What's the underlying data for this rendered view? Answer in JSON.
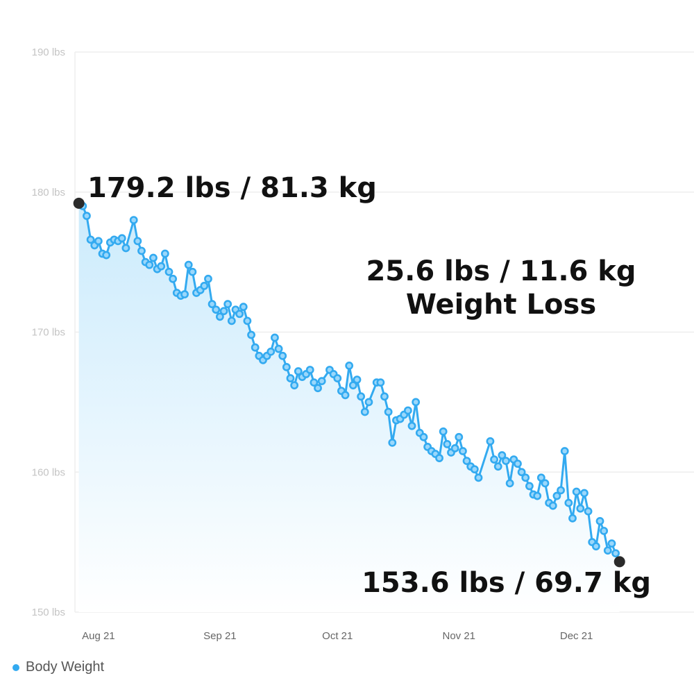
{
  "chart_data": {
    "type": "line",
    "colors": {
      "line": "#33aaf0",
      "marker_fill": "#9ad7fb",
      "endpoint": "#2b2b2b",
      "grid": "#eeeeee"
    },
    "y_axis": {
      "ylim": [
        150,
        190
      ],
      "ticks": [
        {
          "value": 150,
          "label": "150 lbs"
        },
        {
          "value": 160,
          "label": "160 lbs"
        },
        {
          "value": 170,
          "label": "170 lbs"
        },
        {
          "value": 180,
          "label": "180 lbs"
        },
        {
          "value": 190,
          "label": "190 lbs"
        }
      ]
    },
    "x_axis": {
      "xlim": [
        "2021-07-26",
        "2021-12-31"
      ],
      "ticks": [
        {
          "date": "2021-08-01",
          "label": "Aug 21"
        },
        {
          "date": "2021-09-01",
          "label": "Sep 21"
        },
        {
          "date": "2021-10-01",
          "label": "Oct 21"
        },
        {
          "date": "2021-11-01",
          "label": "Nov 21"
        },
        {
          "date": "2021-12-01",
          "label": "Dec 21"
        }
      ]
    },
    "series": [
      {
        "name": "Body Weight",
        "points": [
          [
            "2021-07-27",
            179.2
          ],
          [
            "2021-07-28",
            179.0
          ],
          [
            "2021-07-29",
            178.3
          ],
          [
            "2021-07-30",
            176.6
          ],
          [
            "2021-07-31",
            176.2
          ],
          [
            "2021-08-01",
            176.5
          ],
          [
            "2021-08-02",
            175.6
          ],
          [
            "2021-08-03",
            175.5
          ],
          [
            "2021-08-04",
            176.4
          ],
          [
            "2021-08-05",
            176.6
          ],
          [
            "2021-08-06",
            176.5
          ],
          [
            "2021-08-07",
            176.7
          ],
          [
            "2021-08-08",
            176.0
          ],
          [
            "2021-08-10",
            178.0
          ],
          [
            "2021-08-11",
            176.5
          ],
          [
            "2021-08-12",
            175.8
          ],
          [
            "2021-08-13",
            175.0
          ],
          [
            "2021-08-14",
            174.8
          ],
          [
            "2021-08-15",
            175.3
          ],
          [
            "2021-08-16",
            174.5
          ],
          [
            "2021-08-17",
            174.7
          ],
          [
            "2021-08-18",
            175.6
          ],
          [
            "2021-08-19",
            174.3
          ],
          [
            "2021-08-20",
            173.8
          ],
          [
            "2021-08-21",
            172.8
          ],
          [
            "2021-08-22",
            172.6
          ],
          [
            "2021-08-23",
            172.7
          ],
          [
            "2021-08-24",
            174.8
          ],
          [
            "2021-08-25",
            174.3
          ],
          [
            "2021-08-26",
            172.8
          ],
          [
            "2021-08-27",
            173.0
          ],
          [
            "2021-08-28",
            173.3
          ],
          [
            "2021-08-29",
            173.8
          ],
          [
            "2021-08-30",
            172.0
          ],
          [
            "2021-08-31",
            171.6
          ],
          [
            "2021-09-01",
            171.1
          ],
          [
            "2021-09-02",
            171.5
          ],
          [
            "2021-09-03",
            172.0
          ],
          [
            "2021-09-04",
            170.8
          ],
          [
            "2021-09-05",
            171.6
          ],
          [
            "2021-09-06",
            171.3
          ],
          [
            "2021-09-07",
            171.8
          ],
          [
            "2021-09-08",
            170.8
          ],
          [
            "2021-09-09",
            169.8
          ],
          [
            "2021-09-10",
            168.9
          ],
          [
            "2021-09-11",
            168.3
          ],
          [
            "2021-09-12",
            168.0
          ],
          [
            "2021-09-13",
            168.3
          ],
          [
            "2021-09-14",
            168.6
          ],
          [
            "2021-09-15",
            169.6
          ],
          [
            "2021-09-16",
            168.8
          ],
          [
            "2021-09-17",
            168.3
          ],
          [
            "2021-09-18",
            167.5
          ],
          [
            "2021-09-19",
            166.7
          ],
          [
            "2021-09-20",
            166.2
          ],
          [
            "2021-09-21",
            167.2
          ],
          [
            "2021-09-22",
            166.8
          ],
          [
            "2021-09-23",
            167.0
          ],
          [
            "2021-09-24",
            167.3
          ],
          [
            "2021-09-25",
            166.4
          ],
          [
            "2021-09-26",
            166.0
          ],
          [
            "2021-09-27",
            166.5
          ],
          [
            "2021-09-29",
            167.3
          ],
          [
            "2021-09-30",
            167.0
          ],
          [
            "2021-10-01",
            166.7
          ],
          [
            "2021-10-02",
            165.8
          ],
          [
            "2021-10-03",
            165.5
          ],
          [
            "2021-10-04",
            167.6
          ],
          [
            "2021-10-05",
            166.2
          ],
          [
            "2021-10-06",
            166.6
          ],
          [
            "2021-10-07",
            165.4
          ],
          [
            "2021-10-08",
            164.3
          ],
          [
            "2021-10-09",
            165.0
          ],
          [
            "2021-10-11",
            166.4
          ],
          [
            "2021-10-12",
            166.4
          ],
          [
            "2021-10-13",
            165.4
          ],
          [
            "2021-10-14",
            164.3
          ],
          [
            "2021-10-15",
            162.1
          ],
          [
            "2021-10-16",
            163.7
          ],
          [
            "2021-10-17",
            163.8
          ],
          [
            "2021-10-18",
            164.1
          ],
          [
            "2021-10-19",
            164.4
          ],
          [
            "2021-10-20",
            163.3
          ],
          [
            "2021-10-21",
            165.0
          ],
          [
            "2021-10-22",
            162.8
          ],
          [
            "2021-10-23",
            162.5
          ],
          [
            "2021-10-24",
            161.8
          ],
          [
            "2021-10-25",
            161.5
          ],
          [
            "2021-10-26",
            161.3
          ],
          [
            "2021-10-27",
            161.0
          ],
          [
            "2021-10-28",
            162.9
          ],
          [
            "2021-10-29",
            162.0
          ],
          [
            "2021-10-30",
            161.4
          ],
          [
            "2021-10-31",
            161.7
          ],
          [
            "2021-11-01",
            162.5
          ],
          [
            "2021-11-02",
            161.5
          ],
          [
            "2021-11-03",
            160.8
          ],
          [
            "2021-11-04",
            160.4
          ],
          [
            "2021-11-05",
            160.2
          ],
          [
            "2021-11-06",
            159.6
          ],
          [
            "2021-11-09",
            162.2
          ],
          [
            "2021-11-10",
            160.9
          ],
          [
            "2021-11-11",
            160.4
          ],
          [
            "2021-11-12",
            161.2
          ],
          [
            "2021-11-13",
            160.8
          ],
          [
            "2021-11-14",
            159.2
          ],
          [
            "2021-11-15",
            160.9
          ],
          [
            "2021-11-16",
            160.6
          ],
          [
            "2021-11-17",
            160.0
          ],
          [
            "2021-11-18",
            159.6
          ],
          [
            "2021-11-19",
            159.0
          ],
          [
            "2021-11-20",
            158.4
          ],
          [
            "2021-11-21",
            158.3
          ],
          [
            "2021-11-22",
            159.6
          ],
          [
            "2021-11-23",
            159.2
          ],
          [
            "2021-11-24",
            157.8
          ],
          [
            "2021-11-25",
            157.6
          ],
          [
            "2021-11-26",
            158.3
          ],
          [
            "2021-11-27",
            158.7
          ],
          [
            "2021-11-28",
            161.5
          ],
          [
            "2021-11-29",
            157.8
          ],
          [
            "2021-11-30",
            156.7
          ],
          [
            "2021-12-01",
            158.6
          ],
          [
            "2021-12-02",
            157.4
          ],
          [
            "2021-12-03",
            158.5
          ],
          [
            "2021-12-04",
            157.2
          ],
          [
            "2021-12-05",
            155.0
          ],
          [
            "2021-12-06",
            154.7
          ],
          [
            "2021-12-07",
            156.5
          ],
          [
            "2021-12-08",
            155.8
          ],
          [
            "2021-12-09",
            154.4
          ],
          [
            "2021-12-10",
            154.9
          ],
          [
            "2021-12-11",
            154.2
          ],
          [
            "2021-12-12",
            153.6
          ]
        ]
      }
    ],
    "annotations": [
      {
        "text": "179.2 lbs / 81.3 kg",
        "at": [
          "2021-07-27",
          179.2
        ]
      },
      {
        "text": "25.6 lbs / 11.6 kg",
        "line": 1
      },
      {
        "text": "Weight Loss",
        "line": 2
      },
      {
        "text": "153.6 lbs / 69.7 kg",
        "at": [
          "2021-12-12",
          153.6
        ]
      }
    ],
    "grid": true,
    "legend_position": "bottom-left"
  },
  "legend": {
    "label": "Body Weight"
  }
}
